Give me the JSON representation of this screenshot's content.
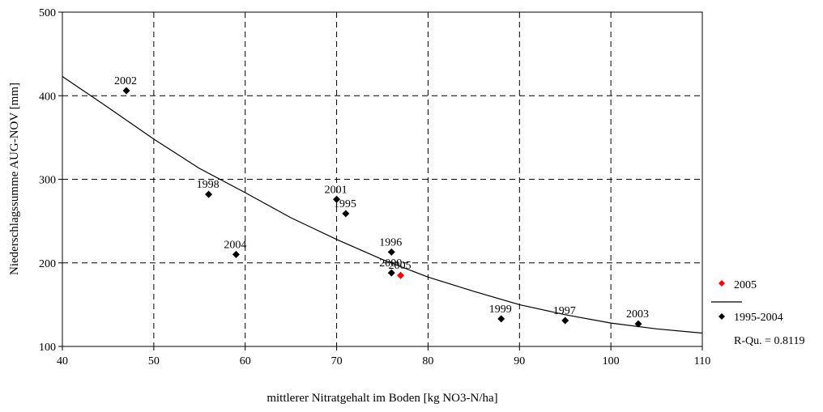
{
  "chart_data": {
    "type": "scatter",
    "xlabel": "mittlerer Nitratgehalt im Boden [kg NO3-N/ha]",
    "ylabel": "Niederschlagssumme AUG-NOV [mm]",
    "xlim": [
      40,
      110
    ],
    "ylim": [
      100,
      500
    ],
    "x_ticks": [
      40,
      50,
      60,
      70,
      80,
      90,
      100,
      110
    ],
    "y_ticks": [
      100,
      200,
      300,
      400,
      500
    ],
    "grid": "dashed",
    "legend_position": "right",
    "series": [
      {
        "name": "2005",
        "color": "#ff0000",
        "marker": "diamond",
        "points": [
          {
            "x": 77,
            "y": 185,
            "label": "2005"
          }
        ]
      },
      {
        "name": "1995-2004",
        "color": "#000000",
        "marker": "diamond",
        "points": [
          {
            "x": 47,
            "y": 406,
            "label": "2002"
          },
          {
            "x": 56,
            "y": 282,
            "label": "1998"
          },
          {
            "x": 59,
            "y": 210,
            "label": "2004"
          },
          {
            "x": 70,
            "y": 276,
            "label": "2001"
          },
          {
            "x": 71,
            "y": 259,
            "label": "1995"
          },
          {
            "x": 76,
            "y": 213,
            "label": "1996"
          },
          {
            "x": 76,
            "y": 188,
            "label": "2000"
          },
          {
            "x": 88,
            "y": 133,
            "label": "1999"
          },
          {
            "x": 95,
            "y": 131,
            "label": "1997"
          },
          {
            "x": 103,
            "y": 127,
            "label": "2003"
          }
        ]
      }
    ],
    "trendline": {
      "series": "1995-2004",
      "r_squared_label": "R-Qu. = 0.8119",
      "points": [
        [
          40,
          423
        ],
        [
          45,
          386
        ],
        [
          50,
          348
        ],
        [
          55,
          313
        ],
        [
          60,
          284
        ],
        [
          65,
          254
        ],
        [
          70,
          228
        ],
        [
          75,
          204
        ],
        [
          80,
          183
        ],
        [
          85,
          166
        ],
        [
          90,
          150
        ],
        [
          95,
          138
        ],
        [
          100,
          128
        ],
        [
          105,
          121
        ],
        [
          110,
          116
        ]
      ]
    }
  }
}
